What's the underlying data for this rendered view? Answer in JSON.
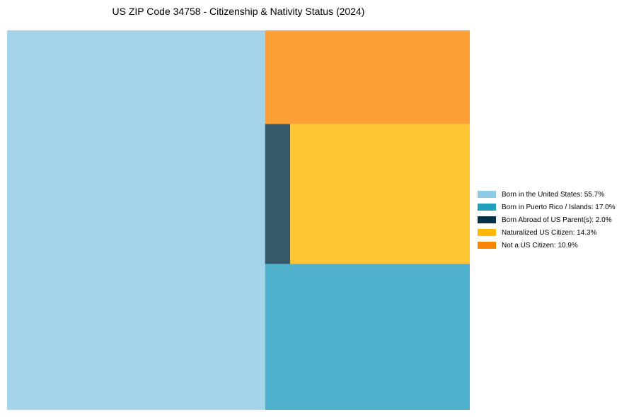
{
  "chart_data": {
    "type": "treemap",
    "title": "US ZIP Code 34758 - Citizenship & Nativity Status (2024)",
    "unit": "%",
    "items": [
      {
        "name": "Born in the United States",
        "value": 55.7,
        "color": "#a5d4ea",
        "legend_color": "#8ecae6",
        "legend_label": "Born in the United States: 55.7%"
      },
      {
        "name": "Born in Puerto Rico / Islands",
        "value": 17.0,
        "color": "#4eb0cb",
        "legend_color": "#219ebc",
        "legend_label": "Born in Puerto Rico / Islands: 17.0%"
      },
      {
        "name": "Born Abroad of US Parent(s)",
        "value": 2.0,
        "color": "#33596b",
        "legend_color": "#023047",
        "legend_label": "Born Abroad of US Parent(s): 2.0%"
      },
      {
        "name": "Naturalized US Citizen",
        "value": 14.3,
        "color": "#fdc534",
        "legend_color": "#ffb703",
        "legend_label": "Naturalized US Citizen: 14.3%"
      },
      {
        "name": "Not a US Citizen",
        "value": 10.9,
        "color": "#fc9f36",
        "legend_color": "#fb8500",
        "legend_label": "Not a US Citizen: 10.9%"
      }
    ],
    "legend_position": "right"
  }
}
